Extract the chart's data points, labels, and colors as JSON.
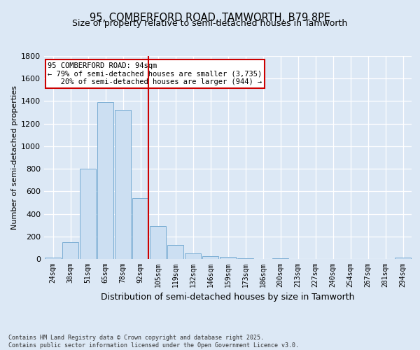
{
  "title_line1": "95, COMBERFORD ROAD, TAMWORTH, B79 8PE",
  "title_line2": "Size of property relative to semi-detached houses in Tamworth",
  "xlabel": "Distribution of semi-detached houses by size in Tamworth",
  "ylabel": "Number of semi-detached properties",
  "bar_labels": [
    "24sqm",
    "38sqm",
    "51sqm",
    "65sqm",
    "78sqm",
    "92sqm",
    "105sqm",
    "119sqm",
    "132sqm",
    "146sqm",
    "159sqm",
    "173sqm",
    "186sqm",
    "200sqm",
    "213sqm",
    "227sqm",
    "240sqm",
    "254sqm",
    "267sqm",
    "281sqm",
    "294sqm"
  ],
  "bar_values": [
    15,
    150,
    800,
    1390,
    1320,
    540,
    290,
    125,
    50,
    25,
    20,
    5,
    0,
    5,
    0,
    0,
    0,
    0,
    0,
    0,
    10
  ],
  "bar_color": "#ccdff2",
  "bar_edge_color": "#7aadd4",
  "marker_index": 5,
  "marker_color": "#cc0000",
  "annotation_text": "95 COMBERFORD ROAD: 94sqm\n← 79% of semi-detached houses are smaller (3,735)\n   20% of semi-detached houses are larger (944) →",
  "annotation_box_color": "#ffffff",
  "annotation_box_edge": "#cc0000",
  "ylim": [
    0,
    1800
  ],
  "yticks": [
    0,
    200,
    400,
    600,
    800,
    1000,
    1200,
    1400,
    1600,
    1800
  ],
  "footer_text": "Contains HM Land Registry data © Crown copyright and database right 2025.\nContains public sector information licensed under the Open Government Licence v3.0.",
  "bg_color": "#dce8f5",
  "plot_bg_color": "#dce8f5",
  "grid_color": "#ffffff",
  "title_fontsize": 10.5,
  "subtitle_fontsize": 9,
  "tick_fontsize": 7,
  "ylabel_fontsize": 8,
  "xlabel_fontsize": 9,
  "footer_fontsize": 6,
  "ann_fontsize": 7.5
}
